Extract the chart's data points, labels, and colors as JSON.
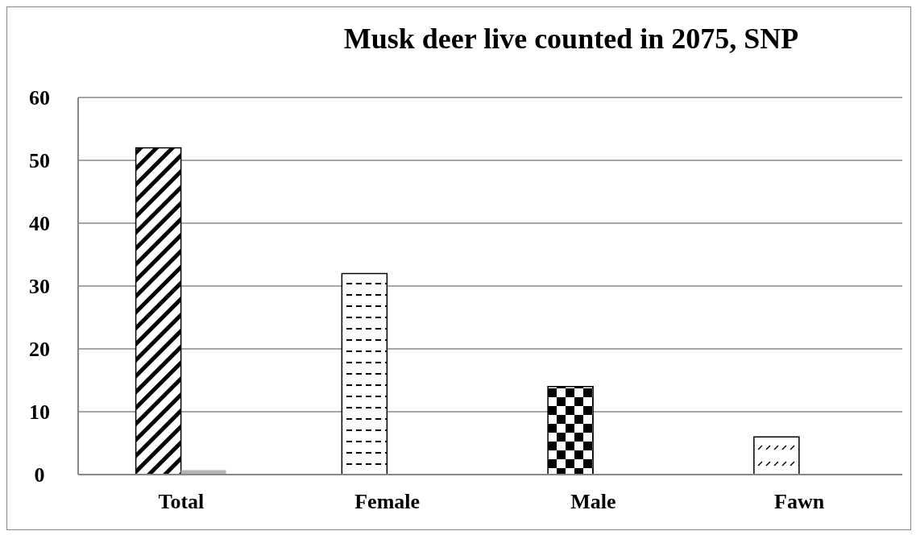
{
  "chart_data": {
    "type": "bar",
    "title": "Musk deer live counted in 2075, SNP",
    "categories": [
      "Total",
      "Female",
      "Male",
      "Fawn"
    ],
    "series": [
      {
        "color": "#000000",
        "values": [
          52,
          32,
          14,
          6
        ]
      },
      {
        "color": "#b3b3b3",
        "values": [
          0.7,
          null,
          null,
          null
        ]
      }
    ],
    "ylim": [
      0,
      60
    ],
    "yticks": [
      0,
      10,
      20,
      30,
      40,
      50,
      60
    ],
    "grid": "y",
    "legend": false
  }
}
